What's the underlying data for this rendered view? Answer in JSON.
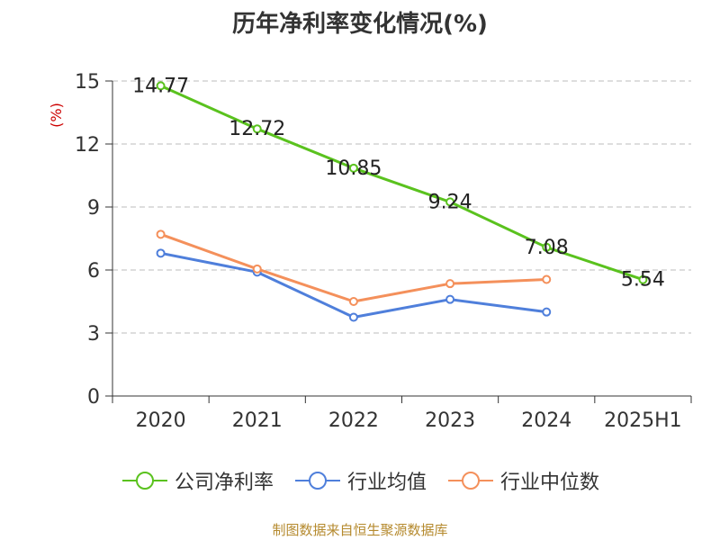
{
  "chart_data": {
    "type": "line",
    "title": "历年净利率变化情况(%)",
    "ylabel": "(%)",
    "categories": [
      "2020",
      "2021",
      "2022",
      "2023",
      "2024",
      "2025H1"
    ],
    "ylim": [
      0,
      15
    ],
    "yticks": [
      0,
      3,
      6,
      9,
      12,
      15
    ],
    "grid": true,
    "legend_position": "bottom",
    "series": [
      {
        "name": "公司净利率",
        "color": "#5ac21e",
        "values": [
          14.77,
          12.72,
          10.85,
          9.24,
          7.08,
          5.54
        ],
        "show_labels": true
      },
      {
        "name": "行业均值",
        "color": "#4f7fdb",
        "values": [
          6.8,
          5.9,
          3.75,
          4.6,
          4.0,
          null
        ],
        "show_labels": false
      },
      {
        "name": "行业中位数",
        "color": "#f4905b",
        "values": [
          7.7,
          6.05,
          4.5,
          5.35,
          5.55,
          null
        ],
        "show_labels": false
      }
    ]
  },
  "source_text": "制图数据来自恒生聚源数据库",
  "colors": {
    "axis_label": "#cc0000",
    "grid": "#bbbbbb",
    "axis": "#333333"
  }
}
